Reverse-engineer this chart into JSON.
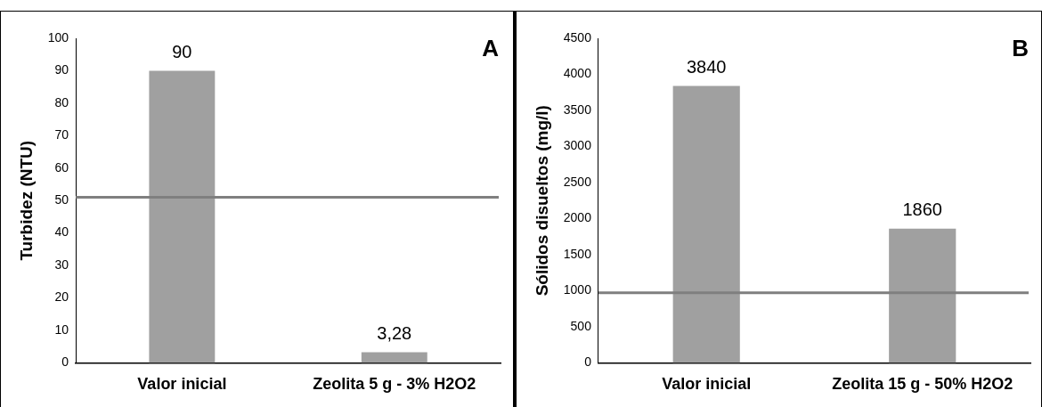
{
  "chart_data": [
    {
      "type": "bar",
      "ylabel": "Turbidez (NTU)",
      "categories": [
        "Valor inicial",
        "Zeolita 5 g - 3% H2O2"
      ],
      "values": [
        90,
        3.28
      ],
      "color": "#a0a0a0",
      "value_labels": [
        "90",
        "3,28"
      ],
      "ylim": [
        0,
        100
      ],
      "yticks": [
        0,
        10,
        20,
        30,
        40,
        50,
        60,
        70,
        80,
        90,
        100
      ],
      "grid": false,
      "ref_lines": [
        {
          "axis": "y",
          "value": 51,
          "color": "#7f7f7f"
        }
      ],
      "annotations": [
        "A"
      ]
    },
    {
      "type": "bar",
      "ylabel": "Sólidos disueltos (mg/l)",
      "categories": [
        "Valor inicial",
        "Zeolita 15 g - 50% H2O2"
      ],
      "values": [
        3840,
        1860
      ],
      "color": "#a0a0a0",
      "data_labels": true,
      "ylim": [
        0,
        4500
      ],
      "yticks": [
        0,
        500,
        1000,
        1500,
        2000,
        2500,
        3000,
        3500,
        4000,
        4500
      ],
      "grid": false,
      "ref_lines": [
        {
          "axis": "y",
          "value": 970,
          "color": "#7f7f7f"
        }
      ],
      "annotations": [
        "B"
      ]
    }
  ]
}
